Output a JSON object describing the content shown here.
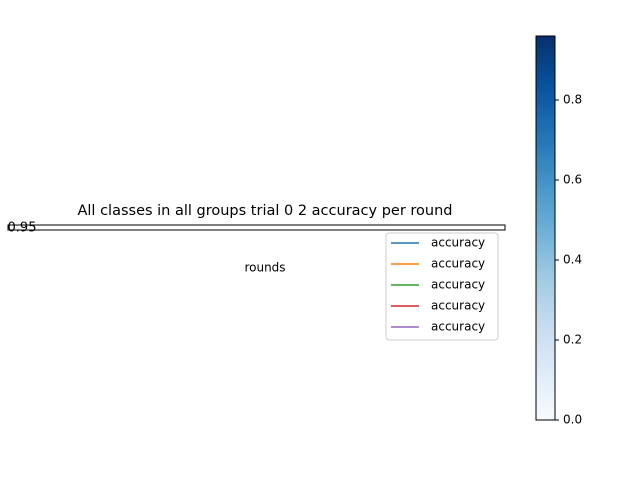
{
  "chart_data": {
    "type": "line",
    "title": "All classes in all groups trial 0 2 accuracy per round",
    "xlabel": "rounds",
    "annotations": [
      "0.95"
    ],
    "series": [
      {
        "name": "accuracy",
        "color": "#1f77b4"
      },
      {
        "name": "accuracy",
        "color": "#ff7f0e"
      },
      {
        "name": "accuracy",
        "color": "#2ca02c"
      },
      {
        "name": "accuracy",
        "color": "#d62728"
      },
      {
        "name": "accuracy",
        "color": "#9467bd"
      }
    ],
    "colorbar": {
      "cmap": "Blues",
      "lim": [
        0,
        0.96
      ],
      "ticks": [
        {
          "value": 0,
          "label": "0.0"
        },
        0.2,
        0.4,
        0.6,
        0.8
      ]
    }
  }
}
